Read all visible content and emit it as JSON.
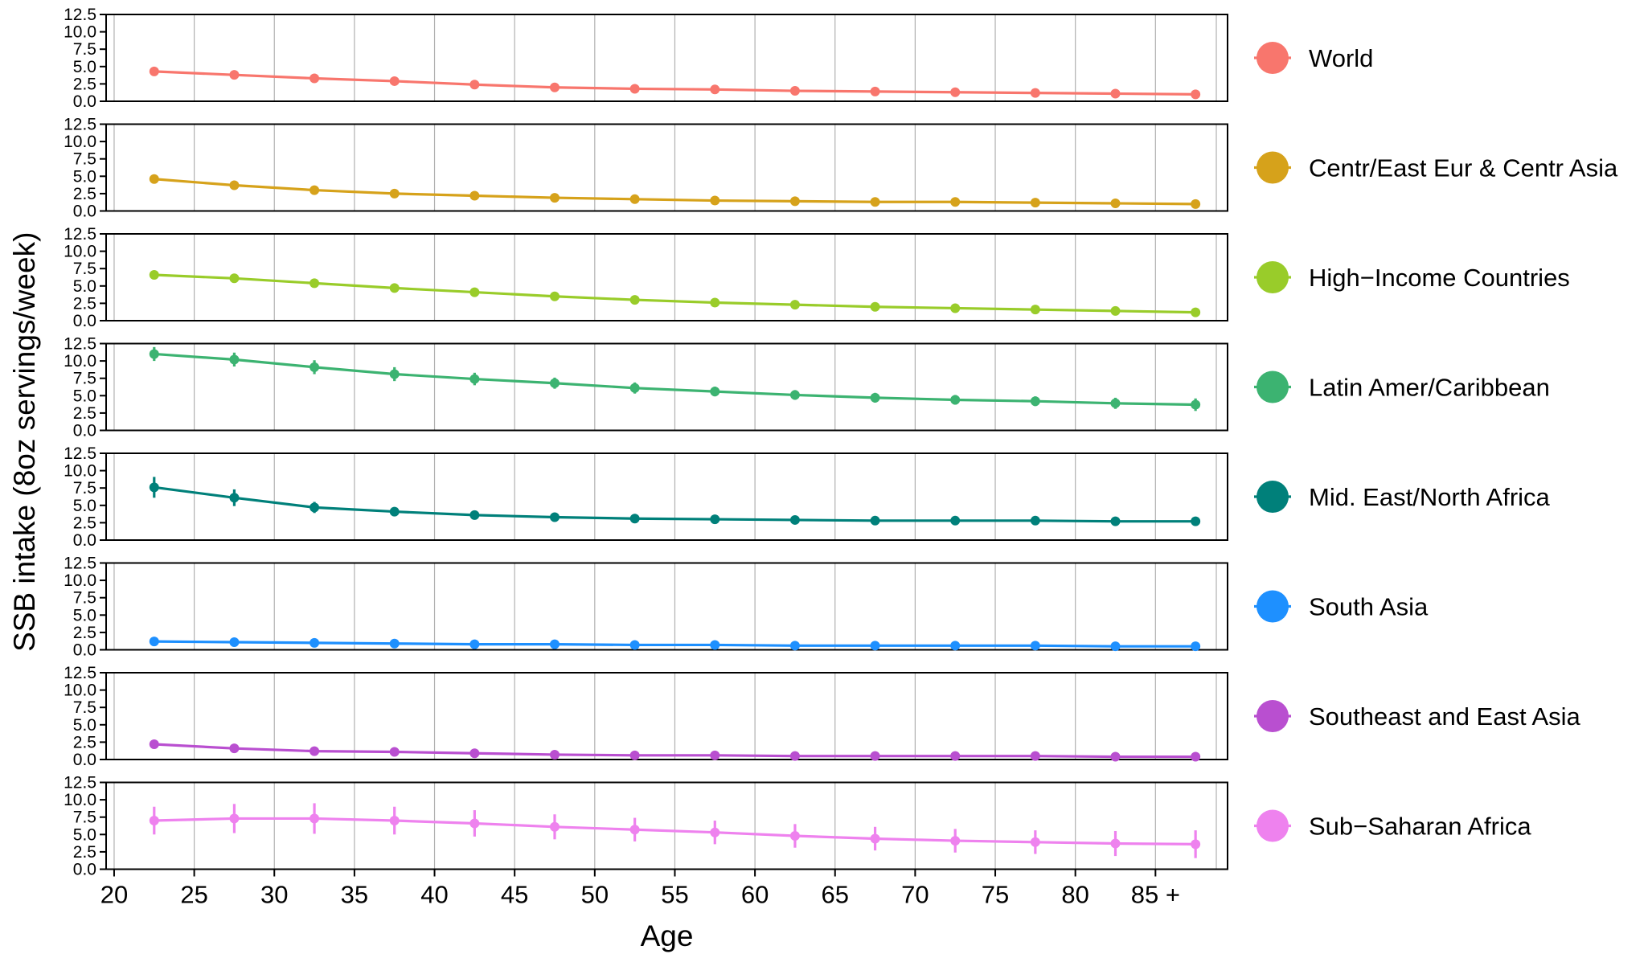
{
  "chart_data": {
    "type": "line",
    "xlabel": "Age",
    "ylabel": "SSB intake (8oz servings/week)",
    "xlim": [
      19.5,
      89.5
    ],
    "ylim": [
      0,
      12.5
    ],
    "x_ticks": [
      20,
      25,
      30,
      35,
      40,
      45,
      50,
      55,
      60,
      65,
      70,
      75,
      80,
      85
    ],
    "x_tick_labels": [
      "20",
      "25",
      "30",
      "35",
      "40",
      "45",
      "50",
      "55",
      "60",
      "65",
      "70",
      "75",
      "80",
      "85 +"
    ],
    "y_ticks": [
      0,
      2.5,
      5,
      7.5,
      10,
      12.5
    ],
    "y_tick_labels": [
      "0.0",
      "2.5",
      "5.0",
      "7.5",
      "10.0",
      "12.5"
    ],
    "x": [
      22.5,
      27.5,
      32.5,
      37.5,
      42.5,
      47.5,
      52.5,
      57.5,
      62.5,
      67.5,
      72.5,
      77.5,
      82.5,
      87.5
    ],
    "grid": "vertical",
    "legend_position": "right",
    "series": [
      {
        "name": "World",
        "color": "#F8766D",
        "values": [
          4.3,
          3.8,
          3.3,
          2.9,
          2.4,
          2.0,
          1.8,
          1.7,
          1.5,
          1.4,
          1.3,
          1.2,
          1.1,
          1.0
        ],
        "error": [
          0.2,
          0.2,
          0.2,
          0.2,
          0.2,
          0.2,
          0.2,
          0.2,
          0.2,
          0.2,
          0.2,
          0.2,
          0.2,
          0.2
        ]
      },
      {
        "name": "Centr/East Eur & Centr Asia",
        "color": "#D6A21B",
        "values": [
          4.6,
          3.7,
          3.0,
          2.5,
          2.2,
          1.9,
          1.7,
          1.5,
          1.4,
          1.3,
          1.3,
          1.2,
          1.1,
          1.0
        ],
        "error": [
          0.5,
          0.3,
          0.2,
          0.2,
          0.2,
          0.2,
          0.2,
          0.2,
          0.2,
          0.2,
          0.2,
          0.2,
          0.2,
          0.2
        ]
      },
      {
        "name": "High−Income Countries",
        "color": "#99CC2A",
        "values": [
          6.6,
          6.1,
          5.4,
          4.7,
          4.1,
          3.5,
          3.0,
          2.6,
          2.3,
          2.0,
          1.8,
          1.6,
          1.4,
          1.2
        ],
        "error": [
          0.2,
          0.2,
          0.2,
          0.2,
          0.2,
          0.2,
          0.2,
          0.2,
          0.2,
          0.2,
          0.2,
          0.2,
          0.2,
          0.2
        ]
      },
      {
        "name": "Latin Amer/Caribbean",
        "color": "#3CB371",
        "values": [
          11.0,
          10.2,
          9.1,
          8.1,
          7.4,
          6.8,
          6.1,
          5.6,
          5.1,
          4.7,
          4.4,
          4.2,
          3.9,
          3.7
        ],
        "error": [
          1.0,
          1.0,
          1.0,
          1.0,
          0.9,
          0.8,
          0.8,
          0.7,
          0.7,
          0.7,
          0.7,
          0.7,
          0.8,
          0.9
        ]
      },
      {
        "name": "Mid. East/North Africa",
        "color": "#00807A",
        "values": [
          7.6,
          6.1,
          4.7,
          4.1,
          3.6,
          3.3,
          3.1,
          3.0,
          2.9,
          2.8,
          2.8,
          2.8,
          2.7,
          2.7
        ],
        "error": [
          1.5,
          1.2,
          0.8,
          0.6,
          0.5,
          0.4,
          0.4,
          0.4,
          0.4,
          0.4,
          0.4,
          0.4,
          0.4,
          0.5
        ]
      },
      {
        "name": "South Asia",
        "color": "#1E90FF",
        "values": [
          1.2,
          1.1,
          1.0,
          0.9,
          0.8,
          0.8,
          0.7,
          0.7,
          0.6,
          0.6,
          0.6,
          0.6,
          0.5,
          0.5
        ],
        "error": [
          0.2,
          0.2,
          0.2,
          0.2,
          0.2,
          0.2,
          0.2,
          0.2,
          0.2,
          0.2,
          0.2,
          0.2,
          0.2,
          0.2
        ]
      },
      {
        "name": "Southeast and East Asia",
        "color": "#B94FD0",
        "values": [
          2.2,
          1.6,
          1.2,
          1.1,
          0.9,
          0.7,
          0.6,
          0.6,
          0.5,
          0.5,
          0.5,
          0.5,
          0.4,
          0.4
        ],
        "error": [
          0.3,
          0.2,
          0.2,
          0.2,
          0.2,
          0.2,
          0.2,
          0.2,
          0.2,
          0.2,
          0.2,
          0.2,
          0.2,
          0.2
        ]
      },
      {
        "name": "Sub−Saharan Africa",
        "color": "#EE82EE",
        "values": [
          7.0,
          7.3,
          7.3,
          7.0,
          6.6,
          6.1,
          5.7,
          5.3,
          4.8,
          4.4,
          4.1,
          3.9,
          3.7,
          3.6
        ],
        "error": [
          2.0,
          2.1,
          2.2,
          2.0,
          1.9,
          1.8,
          1.7,
          1.7,
          1.7,
          1.7,
          1.7,
          1.7,
          1.8,
          2.0
        ]
      }
    ]
  }
}
